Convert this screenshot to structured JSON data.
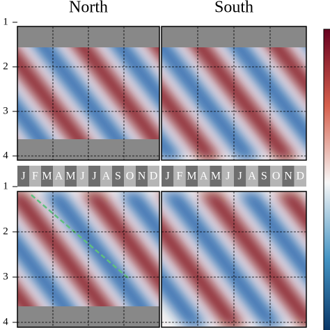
{
  "columns": [
    "North",
    "South"
  ],
  "yticks": [
    1,
    2,
    3,
    4
  ],
  "months": [
    "J",
    "F",
    "M",
    "A",
    "M",
    "J",
    "J",
    "A",
    "S",
    "O",
    "N",
    "D"
  ]
}
